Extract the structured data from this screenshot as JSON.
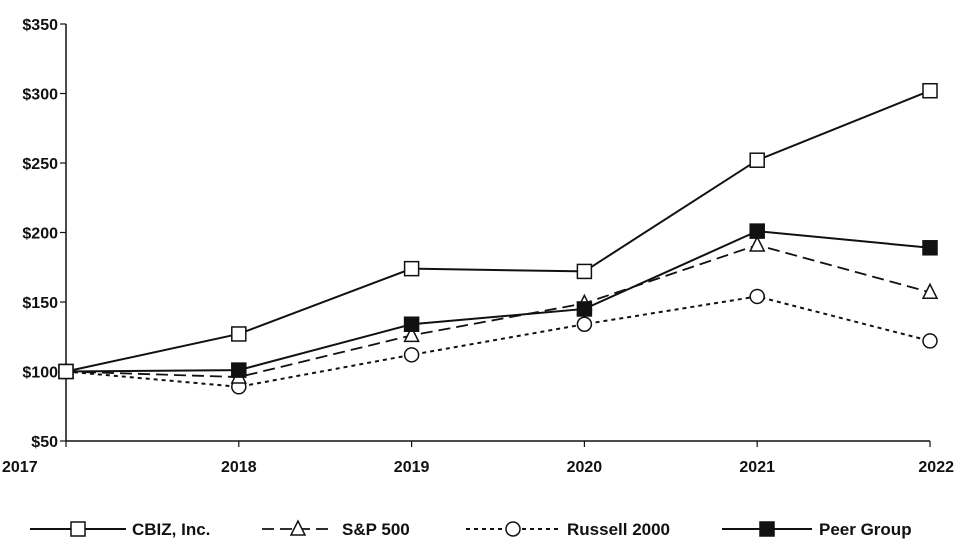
{
  "chart_data": {
    "type": "line",
    "title": "",
    "xlabel": "",
    "ylabel": "",
    "categories": [
      "2017",
      "2018",
      "2019",
      "2020",
      "2021",
      "2022"
    ],
    "ylim": [
      50,
      350
    ],
    "yticks": [
      50,
      100,
      150,
      200,
      250,
      300,
      350
    ],
    "ytick_labels": [
      "$50",
      "$100",
      "$150",
      "$200",
      "$250",
      "$300",
      "$350"
    ],
    "grid": false,
    "legend_position": "bottom",
    "series": [
      {
        "name": "CBIZ, Inc.",
        "values": [
          100,
          127,
          174,
          172,
          252,
          302
        ],
        "line": "solid",
        "marker": "open-square",
        "color": "#111111"
      },
      {
        "name": "S&P 500",
        "values": [
          100,
          96,
          126,
          149,
          191,
          157
        ],
        "line": "dashed",
        "marker": "open-triangle",
        "color": "#111111"
      },
      {
        "name": "Russell 2000",
        "values": [
          100,
          89,
          112,
          134,
          154,
          122
        ],
        "line": "dotted",
        "marker": "open-circle",
        "color": "#111111"
      },
      {
        "name": "Peer Group",
        "values": [
          100,
          101,
          134,
          145,
          201,
          189
        ],
        "line": "solid",
        "marker": "filled-square",
        "color": "#111111"
      }
    ]
  }
}
